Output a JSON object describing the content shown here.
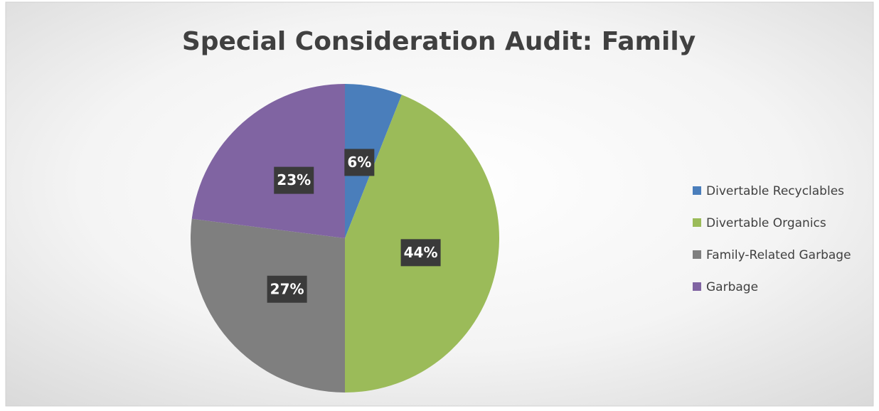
{
  "chart_data": {
    "type": "pie",
    "title": "Special Consideration Audit: Family",
    "categories": [
      "Divertable Recyclables",
      "Divertable Organics",
      "Family-Related Garbage",
      "Garbage"
    ],
    "values": [
      6,
      44,
      27,
      23
    ],
    "value_labels": [
      "6%",
      "44%",
      "27%",
      "23%"
    ],
    "colors": [
      "#4a7ebb",
      "#9bbb59",
      "#7f7f7f",
      "#8064a2"
    ],
    "legend": "right"
  }
}
